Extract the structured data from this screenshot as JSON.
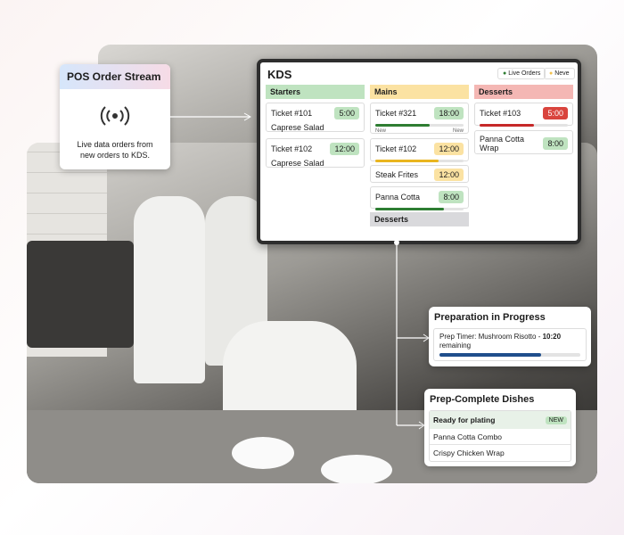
{
  "pos_card": {
    "title": "POS Order Stream",
    "description": "Live data orders from new orders to KDS."
  },
  "kds": {
    "title": "KDS",
    "legend": [
      "Live Orders",
      "Neve"
    ],
    "starters": {
      "header": "Starters",
      "tickets": [
        {
          "name": "Ticket #101",
          "time": "5:00",
          "item": "Caprese Salad"
        },
        {
          "name": "Ticket #102",
          "time": "12:00",
          "item": "Caprese Salad"
        }
      ]
    },
    "mains": {
      "header": "Mains",
      "tickets": [
        {
          "name": "Ticket #321",
          "time": "18:00",
          "notes": [
            "New",
            "New"
          ]
        },
        {
          "name": "Ticket #102",
          "time": "12:00"
        },
        {
          "name": "Steak Frites",
          "time": "12:00"
        },
        {
          "name": "Panna Cotta",
          "time": "8:00"
        }
      ],
      "footer": "Desserts"
    },
    "desserts": {
      "header": "Desserts",
      "tickets": [
        {
          "name": "Ticket #103",
          "time": "5:00"
        },
        {
          "name": "Panna Cotta Wrap",
          "time": "8:00"
        }
      ]
    }
  },
  "prep_progress": {
    "title": "Preparation in Progress",
    "label": "Prep Timer: Mushroom Risotto -",
    "time": "10:20",
    "suffix": "remaining"
  },
  "prep_complete": {
    "title": "Prep-Complete Dishes",
    "header": "Ready for plating",
    "badge": "NEW",
    "items": [
      "Panna Cotta Combo",
      "Crispy Chicken Wrap"
    ]
  }
}
